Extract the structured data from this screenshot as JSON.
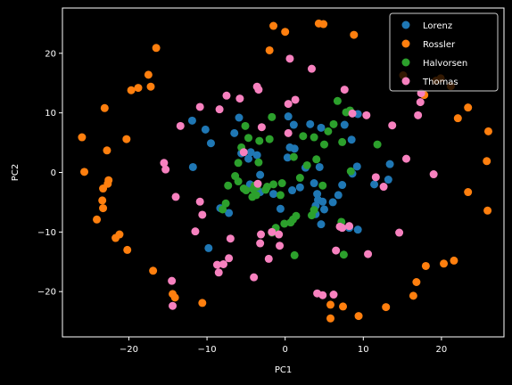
{
  "chart_data": {
    "type": "scatter",
    "title": "",
    "xlabel": "PC1",
    "ylabel": "PC2",
    "xlim": [
      -28.5,
      28.0
    ],
    "ylim": [
      -27.6,
      27.6
    ],
    "xticks": [
      -20,
      -10,
      0,
      10,
      20
    ],
    "yticks": [
      -20,
      -10,
      0,
      10,
      20
    ],
    "grid": false,
    "legend_position": "top-right",
    "background": "#000000",
    "axis_color": "#ffffff",
    "series": [
      {
        "name": "Lorenz",
        "color": "#1f77b4",
        "points": [
          [
            -11.9,
            8.7
          ],
          [
            -10.2,
            7.2
          ],
          [
            -9.5,
            4.9
          ],
          [
            -9.8,
            -12.7
          ],
          [
            -11.8,
            0.9
          ],
          [
            -5.9,
            9.2
          ],
          [
            -6.5,
            6.6
          ],
          [
            -5.6,
            3.2
          ],
          [
            -4.7,
            2.3
          ],
          [
            -4.4,
            3.4
          ],
          [
            -3.6,
            2.9
          ],
          [
            -4.5,
            -2.0
          ],
          [
            -3.2,
            -0.4
          ],
          [
            -8.3,
            -6.0
          ],
          [
            -7.2,
            -6.8
          ],
          [
            -3.2,
            -3.3
          ],
          [
            -1.5,
            -3.6
          ],
          [
            -0.6,
            -6.1
          ],
          [
            0.3,
            2.5
          ],
          [
            0.6,
            4.2
          ],
          [
            1.2,
            4.0
          ],
          [
            1.9,
            -2.5
          ],
          [
            0.9,
            -3.0
          ],
          [
            0.4,
            9.4
          ],
          [
            1.1,
            8.0
          ],
          [
            3.2,
            8.1
          ],
          [
            3.7,
            -1.8
          ],
          [
            4.4,
            0.9
          ],
          [
            2.6,
            0.8
          ],
          [
            4.1,
            -3.6
          ],
          [
            4.8,
            -4.9
          ],
          [
            3.9,
            -5.6
          ],
          [
            5.0,
            -6.2
          ],
          [
            4.6,
            -8.7
          ],
          [
            3.9,
            -7.0
          ],
          [
            4.2,
            -4.6
          ],
          [
            6.1,
            -5.0
          ],
          [
            6.8,
            -3.8
          ],
          [
            7.3,
            -2.1
          ],
          [
            8.2,
            -9.3
          ],
          [
            9.3,
            -9.6
          ],
          [
            7.6,
            8.0
          ],
          [
            8.5,
            5.5
          ],
          [
            8.6,
            -0.2
          ],
          [
            9.3,
            9.8
          ],
          [
            9.2,
            1.0
          ],
          [
            11.4,
            -2.0
          ],
          [
            13.2,
            -1.2
          ],
          [
            13.4,
            1.4
          ],
          [
            4.6,
            7.5
          ]
        ]
      },
      {
        "name": "Rossler",
        "color": "#ff7f0e",
        "points": [
          [
            -26.0,
            5.9
          ],
          [
            -25.7,
            0.1
          ],
          [
            -24.1,
            -7.9
          ],
          [
            -23.3,
            -6.0
          ],
          [
            -23.4,
            -4.7
          ],
          [
            -23.3,
            -2.7
          ],
          [
            -22.6,
            -1.3
          ],
          [
            -22.7,
            -1.9
          ],
          [
            -23.1,
            10.8
          ],
          [
            -22.8,
            3.7
          ],
          [
            -21.7,
            -11.0
          ],
          [
            -21.2,
            -10.4
          ],
          [
            -20.2,
            -13.0
          ],
          [
            -20.3,
            5.6
          ],
          [
            -19.7,
            13.8
          ],
          [
            -18.8,
            14.2
          ],
          [
            -17.5,
            16.4
          ],
          [
            -17.2,
            14.4
          ],
          [
            -16.5,
            20.9
          ],
          [
            -16.9,
            -16.5
          ],
          [
            -14.4,
            -20.4
          ],
          [
            -14.1,
            -21.0
          ],
          [
            -10.6,
            -21.9
          ],
          [
            -2.0,
            20.5
          ],
          [
            -1.5,
            24.6
          ],
          [
            0.0,
            23.6
          ],
          [
            4.3,
            25.0
          ],
          [
            4.9,
            24.9
          ],
          [
            8.8,
            23.1
          ],
          [
            5.8,
            -22.2
          ],
          [
            5.8,
            -24.5
          ],
          [
            7.4,
            -22.5
          ],
          [
            9.4,
            -24.1
          ],
          [
            12.9,
            -22.6
          ],
          [
            16.4,
            -20.7
          ],
          [
            16.8,
            -18.4
          ],
          [
            18.0,
            -15.7
          ],
          [
            19.3,
            15.4
          ],
          [
            20.3,
            -15.3
          ],
          [
            21.2,
            14.5
          ],
          [
            21.6,
            -14.8
          ],
          [
            22.1,
            9.1
          ],
          [
            23.4,
            10.9
          ],
          [
            23.4,
            -3.3
          ],
          [
            25.8,
            1.9
          ],
          [
            26.0,
            6.9
          ],
          [
            25.9,
            -6.4
          ],
          [
            19.9,
            15.8
          ],
          [
            15.1,
            16.3
          ],
          [
            17.8,
            13.0
          ]
        ]
      },
      {
        "name": "Halvorsen",
        "color": "#2ca02c",
        "points": [
          [
            -7.6,
            -5.2
          ],
          [
            -8.0,
            -6.2
          ],
          [
            -6.4,
            -0.6
          ],
          [
            -7.3,
            -2.2
          ],
          [
            -6.0,
            -1.5
          ],
          [
            -6.0,
            1.6
          ],
          [
            -5.6,
            4.2
          ],
          [
            -5.3,
            -2.7
          ],
          [
            -5.0,
            -3.0
          ],
          [
            -4.7,
            5.8
          ],
          [
            -5.1,
            7.8
          ],
          [
            -4.2,
            -4.1
          ],
          [
            -4.1,
            -2.8
          ],
          [
            -3.9,
            -2.2
          ],
          [
            -3.7,
            -3.8
          ],
          [
            -3.6,
            -2.4
          ],
          [
            -3.4,
            1.7
          ],
          [
            -3.3,
            5.3
          ],
          [
            -2.3,
            -2.4
          ],
          [
            -2.0,
            5.6
          ],
          [
            -1.7,
            9.3
          ],
          [
            -1.5,
            -2.0
          ],
          [
            -1.7,
            -10.1
          ],
          [
            -1.2,
            -9.3
          ],
          [
            -0.6,
            -3.8
          ],
          [
            -0.4,
            -1.8
          ],
          [
            -0.1,
            -8.6
          ],
          [
            0.7,
            -8.4
          ],
          [
            1.0,
            -7.9
          ],
          [
            1.4,
            -7.3
          ],
          [
            1.1,
            2.6
          ],
          [
            1.9,
            -0.9
          ],
          [
            2.3,
            6.1
          ],
          [
            2.8,
            1.2
          ],
          [
            3.4,
            -7.2
          ],
          [
            3.7,
            5.9
          ],
          [
            3.7,
            -6.3
          ],
          [
            4.0,
            2.2
          ],
          [
            4.8,
            -2.2
          ],
          [
            5.0,
            4.7
          ],
          [
            5.5,
            6.9
          ],
          [
            6.2,
            8.1
          ],
          [
            6.7,
            12.0
          ],
          [
            7.3,
            5.1
          ],
          [
            7.2,
            -8.3
          ],
          [
            7.5,
            -13.8
          ],
          [
            7.8,
            10.1
          ],
          [
            8.3,
            10.4
          ],
          [
            8.4,
            0.2
          ],
          [
            11.8,
            4.7
          ],
          [
            -2.5,
            -2.9
          ],
          [
            1.2,
            -13.9
          ]
        ]
      },
      {
        "name": "Thomas",
        "color": "#f781bf",
        "points": [
          [
            -15.5,
            1.6
          ],
          [
            -15.3,
            0.5
          ],
          [
            -14.5,
            -18.2
          ],
          [
            -14.0,
            -4.1
          ],
          [
            -14.4,
            -22.4
          ],
          [
            -13.4,
            7.8
          ],
          [
            -11.5,
            -9.9
          ],
          [
            -10.6,
            -7.1
          ],
          [
            -10.9,
            -4.9
          ],
          [
            -10.9,
            11.0
          ],
          [
            -8.4,
            10.6
          ],
          [
            -8.5,
            -16.8
          ],
          [
            -8.7,
            -15.5
          ],
          [
            -7.9,
            -15.4
          ],
          [
            -7.5,
            12.9
          ],
          [
            -7.2,
            -14.4
          ],
          [
            -7.0,
            -11.1
          ],
          [
            -5.8,
            12.4
          ],
          [
            -5.3,
            3.4
          ],
          [
            -4.0,
            -17.6
          ],
          [
            -3.5,
            -1.9
          ],
          [
            -3.6,
            14.4
          ],
          [
            -3.4,
            13.9
          ],
          [
            -3.2,
            -11.9
          ],
          [
            -3.0,
            7.6
          ],
          [
            -3.1,
            -10.4
          ],
          [
            -2.1,
            -14.5
          ],
          [
            -1.7,
            -10.0
          ],
          [
            -0.7,
            -12.3
          ],
          [
            -0.8,
            -10.4
          ],
          [
            0.4,
            11.5
          ],
          [
            0.6,
            19.1
          ],
          [
            1.3,
            12.2
          ],
          [
            0.4,
            6.6
          ],
          [
            3.4,
            17.4
          ],
          [
            4.1,
            -20.3
          ],
          [
            4.8,
            -20.6
          ],
          [
            6.2,
            -20.5
          ],
          [
            6.5,
            -13.1
          ],
          [
            7.0,
            -9.1
          ],
          [
            7.3,
            -9.3
          ],
          [
            7.6,
            13.9
          ],
          [
            8.2,
            -9.0
          ],
          [
            8.6,
            9.9
          ],
          [
            10.4,
            9.6
          ],
          [
            10.6,
            -13.7
          ],
          [
            11.6,
            -0.8
          ],
          [
            12.6,
            -2.4
          ],
          [
            13.7,
            7.9
          ],
          [
            14.6,
            -10.1
          ],
          [
            15.5,
            2.3
          ],
          [
            17.0,
            9.6
          ],
          [
            17.4,
            13.3
          ],
          [
            17.3,
            11.8
          ],
          [
            19.0,
            -0.3
          ]
        ]
      }
    ]
  }
}
